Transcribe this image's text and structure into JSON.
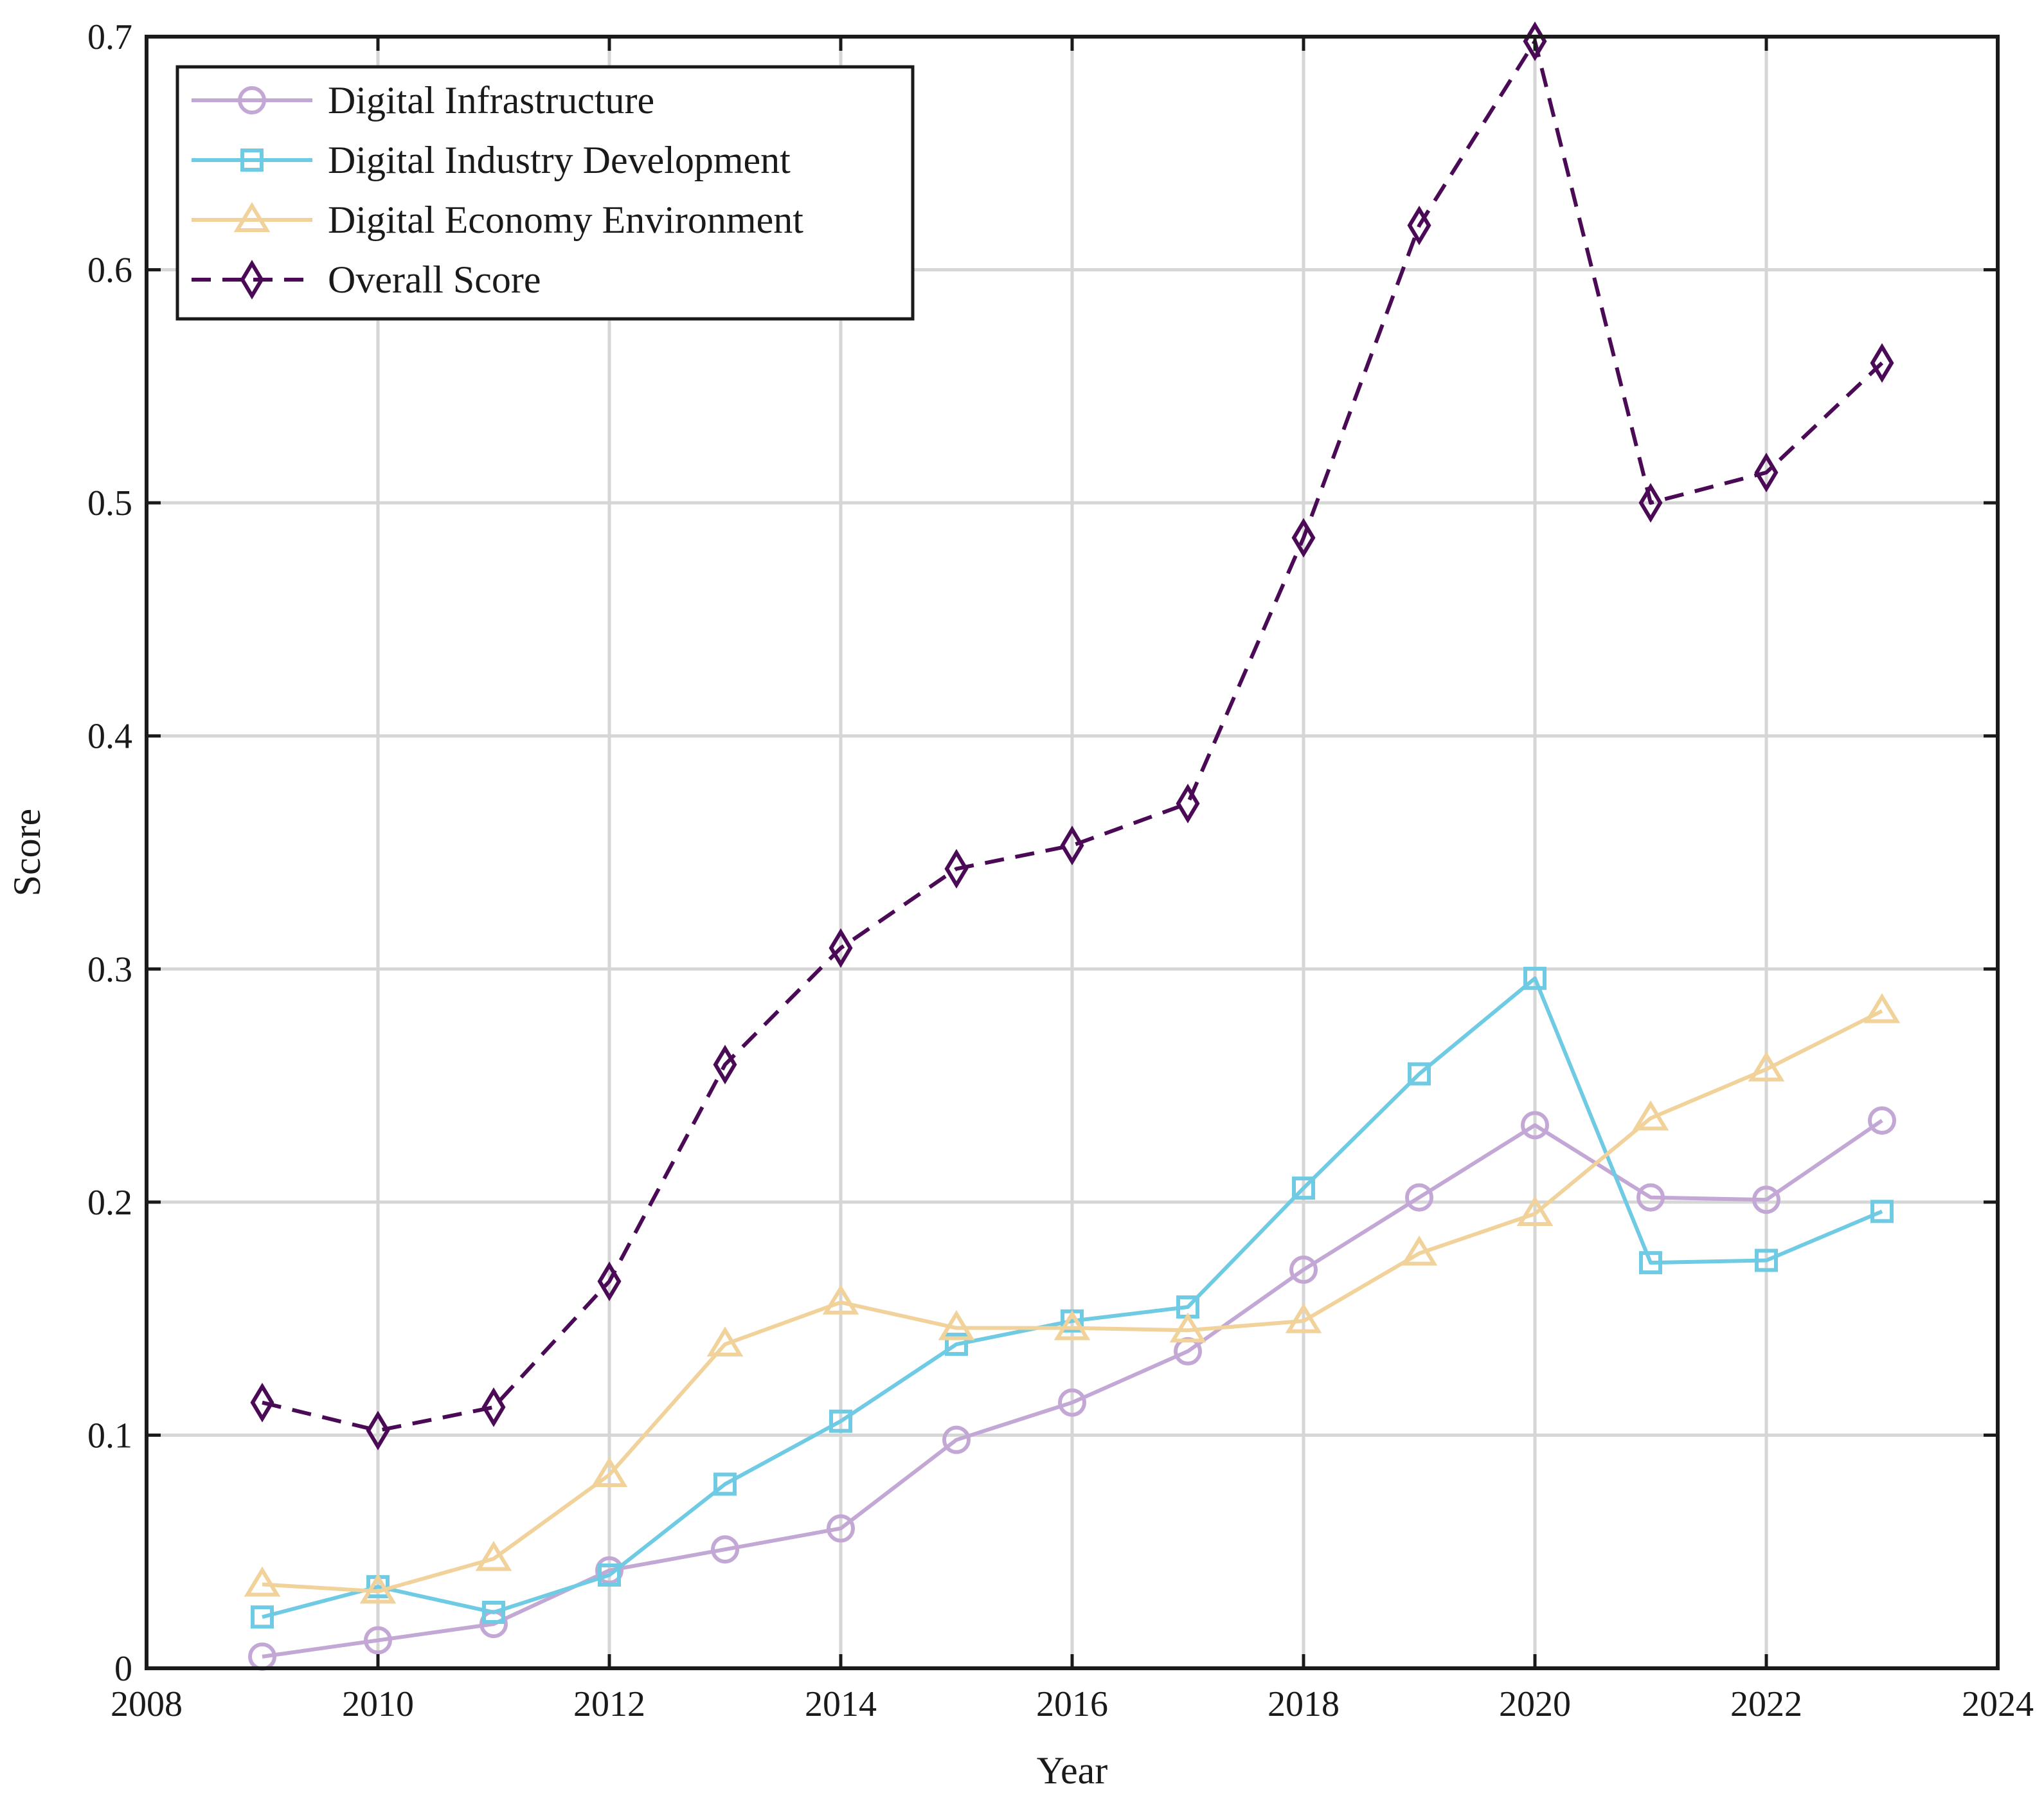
{
  "chart_data": {
    "type": "line",
    "title": "",
    "xlabel": "Year",
    "ylabel": "Score",
    "xlim": [
      2008,
      2024
    ],
    "ylim": [
      0,
      0.7
    ],
    "xticks": [
      2008,
      2010,
      2012,
      2014,
      2016,
      2018,
      2020,
      2022,
      2024
    ],
    "yticks": [
      0,
      0.1,
      0.2,
      0.3,
      0.4,
      0.5,
      0.6,
      0.7
    ],
    "xtick_labels": [
      "2008",
      "2010",
      "2012",
      "2014",
      "2016",
      "2018",
      "2020",
      "2022",
      "2024"
    ],
    "ytick_labels": [
      "0",
      "0.1",
      "0.2",
      "0.3",
      "0.4",
      "0.5",
      "0.6",
      "0.7"
    ],
    "grid": true,
    "legend_position": "top-left",
    "x": [
      2009,
      2010,
      2011,
      2012,
      2013,
      2014,
      2015,
      2016,
      2017,
      2018,
      2019,
      2020,
      2021,
      2022,
      2023
    ],
    "series": [
      {
        "name": "Digital Infrastructure",
        "marker": "circle",
        "line_style": "solid",
        "color": "#C3A8D6",
        "values": [
          0.005,
          0.012,
          0.019,
          0.042,
          0.051,
          0.06,
          0.098,
          0.114,
          0.136,
          0.171,
          0.202,
          0.233,
          0.202,
          0.201,
          0.235
        ]
      },
      {
        "name": "Digital Industry Development",
        "marker": "square",
        "line_style": "solid",
        "color": "#6FCBE3",
        "values": [
          0.022,
          0.035,
          0.024,
          0.04,
          0.079,
          0.106,
          0.139,
          0.149,
          0.155,
          0.206,
          0.255,
          0.296,
          0.174,
          0.175,
          0.196
        ]
      },
      {
        "name": "Digital Economy Environment",
        "marker": "triangle",
        "line_style": "solid",
        "color": "#F0D29A",
        "values": [
          0.036,
          0.033,
          0.047,
          0.083,
          0.139,
          0.157,
          0.146,
          0.146,
          0.145,
          0.149,
          0.178,
          0.195,
          0.236,
          0.257,
          0.282
        ]
      },
      {
        "name": "Overall Score",
        "marker": "diamond",
        "line_style": "dashed",
        "color": "#4A0A55",
        "values": [
          0.114,
          0.102,
          0.112,
          0.166,
          0.259,
          0.309,
          0.343,
          0.353,
          0.371,
          0.485,
          0.619,
          0.698,
          0.5,
          0.513,
          0.56
        ]
      }
    ]
  }
}
